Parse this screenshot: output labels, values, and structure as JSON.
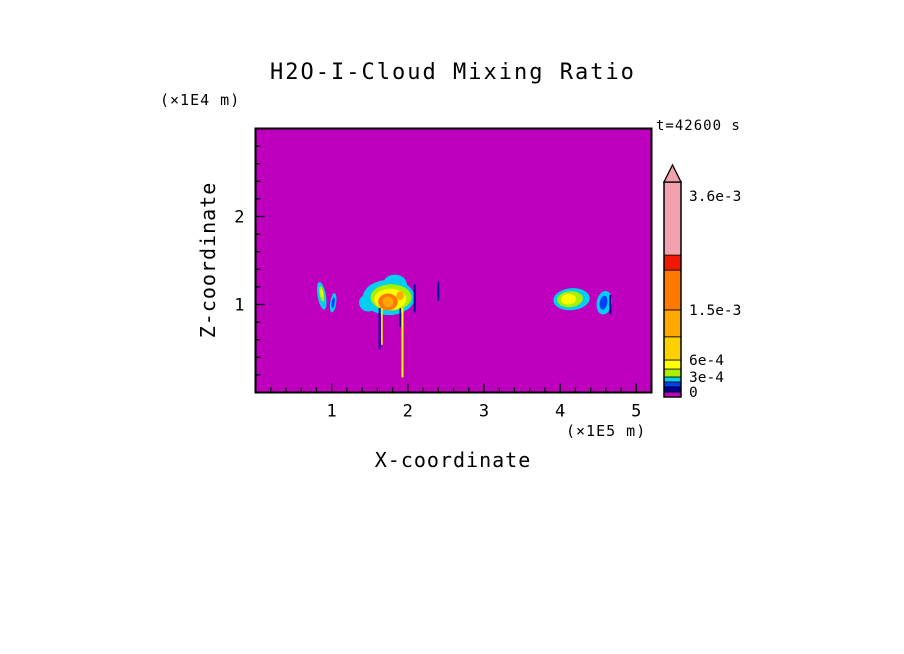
{
  "chart_data": {
    "type": "heatmap",
    "title": "H2O-I-Cloud Mixing Ratio",
    "xlabel": "X-coordinate",
    "ylabel": "Z-coordinate",
    "x_unit_label": "(×1E5 m)",
    "y_unit_label": "(×1E4 m)",
    "time_label": "t=42600 s",
    "x_range": [
      0,
      5.2
    ],
    "z_range": [
      0,
      3
    ],
    "x_ticks_labeled": [
      1,
      2,
      3,
      4,
      5
    ],
    "z_ticks_labeled": [
      1,
      2
    ],
    "minor_tick_step": 0.2,
    "background_value": 0,
    "background_color": "#BE00BE",
    "grid": false,
    "legend_position": "right-colorbar",
    "palette": {
      "magenta": "#BE00BE",
      "navy": "#000099",
      "blue": "#0040FF",
      "cyan1": "#00CFEF",
      "green": "#AAEE00",
      "yellow": "#FFFF00",
      "gold": "#FFD000",
      "amber": "#FFA800",
      "orange": "#FF7800",
      "red": "#F01800",
      "pink": "#F2A2AE"
    },
    "colorbar": {
      "labels": [
        {
          "text": "3.6e-3",
          "f": 0.935
        },
        {
          "text": "1.5e-3",
          "f": 0.405
        },
        {
          "text": "6e-4",
          "f": 0.172
        },
        {
          "text": "3e-4",
          "f": 0.093
        },
        {
          "text": "0",
          "f": 0.023
        }
      ],
      "segments": [
        {
          "color": "magenta",
          "from": 0.0,
          "to": 0.023
        },
        {
          "color": "navy",
          "from": 0.023,
          "to": 0.047
        },
        {
          "color": "blue",
          "from": 0.047,
          "to": 0.07
        },
        {
          "color": "cyan1",
          "from": 0.07,
          "to": 0.093
        },
        {
          "color": "green",
          "from": 0.093,
          "to": 0.13
        },
        {
          "color": "yellow",
          "from": 0.13,
          "to": 0.172
        },
        {
          "color": "gold",
          "from": 0.172,
          "to": 0.28
        },
        {
          "color": "amber",
          "from": 0.28,
          "to": 0.405
        },
        {
          "color": "orange",
          "from": 0.405,
          "to": 0.59
        },
        {
          "color": "red",
          "from": 0.59,
          "to": 0.66
        },
        {
          "color": "pink",
          "from": 0.66,
          "to": 1.0
        }
      ],
      "overflow_arrow_color": "pink"
    },
    "features": [
      {
        "type": "ellipse",
        "x": 0.87,
        "z": 1.1,
        "rx": 0.055,
        "rz": 0.16,
        "rot": -10,
        "color": "cyan1"
      },
      {
        "type": "ellipse",
        "x": 0.87,
        "z": 1.12,
        "rx": 0.03,
        "rz": 0.09,
        "rot": -10,
        "color": "green"
      },
      {
        "type": "ellipse",
        "x": 0.87,
        "z": 1.13,
        "rx": 0.015,
        "rz": 0.045,
        "rot": -10,
        "color": "yellow"
      },
      {
        "type": "ellipse",
        "x": 1.02,
        "z": 1.02,
        "rx": 0.04,
        "rz": 0.11,
        "rot": 8,
        "color": "cyan1"
      },
      {
        "type": "ellipse",
        "x": 1.02,
        "z": 1.02,
        "rx": 0.02,
        "rz": 0.06,
        "rot": 8,
        "color": "blue"
      },
      {
        "type": "ellipse",
        "x": 1.75,
        "z": 1.08,
        "rx": 0.34,
        "rz": 0.2,
        "rot": 0,
        "color": "cyan1"
      },
      {
        "type": "ellipse",
        "x": 1.83,
        "z": 1.22,
        "rx": 0.16,
        "rz": 0.12,
        "rot": 0,
        "color": "cyan1"
      },
      {
        "type": "ellipse",
        "x": 1.48,
        "z": 1.02,
        "rx": 0.12,
        "rz": 0.1,
        "rot": 0,
        "color": "cyan1"
      },
      {
        "type": "ellipse",
        "x": 1.78,
        "z": 1.08,
        "rx": 0.27,
        "rz": 0.15,
        "rot": 0,
        "color": "green"
      },
      {
        "type": "ellipse",
        "x": 1.77,
        "z": 1.06,
        "rx": 0.21,
        "rz": 0.12,
        "rot": 0,
        "color": "yellow"
      },
      {
        "type": "ellipse",
        "x": 1.74,
        "z": 1.03,
        "rx": 0.13,
        "rz": 0.095,
        "rot": 0,
        "color": "orange"
      },
      {
        "type": "ellipse",
        "x": 1.74,
        "z": 1.03,
        "rx": 0.07,
        "rz": 0.06,
        "rot": 0,
        "color": "amber"
      },
      {
        "type": "ellipse",
        "x": 1.9,
        "z": 1.1,
        "rx": 0.05,
        "rz": 0.05,
        "rot": 0,
        "color": "amber"
      },
      {
        "type": "line",
        "x": 2.09,
        "z1": 0.92,
        "z2": 1.22,
        "color": "navy",
        "w": 2
      },
      {
        "type": "line",
        "x": 1.63,
        "z1": 0.5,
        "z2": 0.95,
        "color": "navy",
        "w": 2
      },
      {
        "type": "line",
        "x": 1.66,
        "z1": 0.55,
        "z2": 0.95,
        "color": "yellow",
        "w": 1.5
      },
      {
        "type": "line",
        "x": 1.93,
        "z1": 0.18,
        "z2": 0.95,
        "color": "yellow",
        "w": 2
      },
      {
        "type": "line",
        "x": 1.9,
        "z1": 0.75,
        "z2": 0.95,
        "color": "navy",
        "w": 1.5
      },
      {
        "type": "line",
        "x": 2.4,
        "z1": 1.05,
        "z2": 1.25,
        "color": "navy",
        "w": 2
      },
      {
        "type": "ellipse",
        "x": 4.15,
        "z": 1.06,
        "rx": 0.24,
        "rz": 0.125,
        "rot": -5,
        "color": "cyan1"
      },
      {
        "type": "ellipse",
        "x": 4.13,
        "z": 1.06,
        "rx": 0.17,
        "rz": 0.09,
        "rot": -5,
        "color": "green"
      },
      {
        "type": "ellipse",
        "x": 4.11,
        "z": 1.06,
        "rx": 0.1,
        "rz": 0.06,
        "rot": -5,
        "color": "yellow"
      },
      {
        "type": "ellipse",
        "x": 4.58,
        "z": 1.02,
        "rx": 0.1,
        "rz": 0.135,
        "rot": 10,
        "color": "cyan1"
      },
      {
        "type": "ellipse",
        "x": 4.57,
        "z": 1.02,
        "rx": 0.05,
        "rz": 0.08,
        "rot": 10,
        "color": "blue"
      },
      {
        "type": "line",
        "x": 4.66,
        "z1": 0.9,
        "z2": 1.1,
        "color": "navy",
        "w": 2
      }
    ]
  }
}
